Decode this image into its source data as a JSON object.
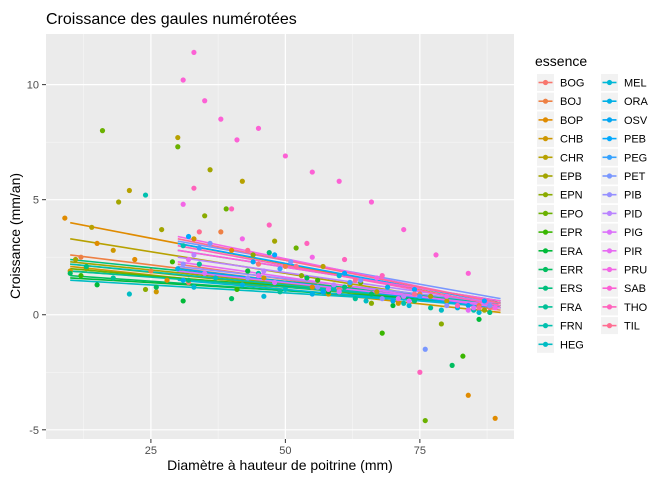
{
  "chart_data": {
    "type": "scatter",
    "title": "Croissance des gaules numérotées",
    "xlabel": "Diamètre à hauteur de poitrine (mm)",
    "ylabel": "Croissance (mm/an)",
    "xlim": [
      5.5,
      92.5
    ],
    "ylim": [
      -5.4,
      12.2
    ],
    "x_ticks": [
      25,
      50,
      75
    ],
    "x_tick_labels": [
      "25",
      "50",
      "75"
    ],
    "y_ticks": [
      -5,
      0,
      5,
      10
    ],
    "y_tick_labels": [
      "-5",
      "0",
      "5",
      "10"
    ],
    "grid": true,
    "legend": {
      "title": "essence",
      "position": "right",
      "columns": 2
    },
    "series": [
      {
        "name": "BOG",
        "color": "#F8766D",
        "x": [
          32,
          45,
          60,
          72,
          88
        ],
        "y": [
          1.4,
          2.2,
          1.1,
          0.8,
          0.3
        ],
        "trend": [
          [
            30,
            2.2
          ],
          [
            90,
            0.2
          ]
        ]
      },
      {
        "name": "BOJ",
        "color": "#EE8044",
        "x": [
          12,
          25,
          38,
          50,
          62,
          75,
          86
        ],
        "y": [
          2.5,
          1.9,
          3.6,
          2.1,
          1.4,
          0.9,
          0.4
        ],
        "trend": [
          [
            10,
            2.6
          ],
          [
            90,
            0.3
          ]
        ]
      },
      {
        "name": "BOP",
        "color": "#E08B00",
        "x": [
          9,
          15,
          22,
          28,
          40,
          55,
          70,
          84,
          89
        ],
        "y": [
          4.2,
          3.1,
          2.4,
          1.5,
          2.8,
          1.2,
          0.6,
          -3.5,
          -4.5
        ],
        "trend": [
          [
            10,
            4.0
          ],
          [
            90,
            0.4
          ]
        ]
      },
      {
        "name": "CHB",
        "color": "#CE9700",
        "x": [
          10,
          18,
          26,
          33,
          46,
          58,
          71
        ],
        "y": [
          1.9,
          2.8,
          1.0,
          3.3,
          1.6,
          0.9,
          0.5
        ],
        "trend": [
          [
            10,
            2.1
          ],
          [
            90,
            0.1
          ]
        ]
      },
      {
        "name": "CHR",
        "color": "#B7A100",
        "x": [
          14,
          21,
          30,
          42,
          57,
          67,
          80
        ],
        "y": [
          3.8,
          5.4,
          7.7,
          5.8,
          2.1,
          1.0,
          0.6
        ],
        "trend": [
          [
            10,
            3.3
          ],
          [
            90,
            0.3
          ]
        ]
      },
      {
        "name": "EPB",
        "color": "#A3A500",
        "x": [
          11,
          19,
          27,
          36,
          48,
          62,
          77,
          87
        ],
        "y": [
          2.4,
          4.9,
          3.7,
          6.3,
          3.2,
          1.3,
          0.8,
          0.2
        ],
        "trend": [
          [
            10,
            2.3
          ],
          [
            90,
            0.4
          ]
        ]
      },
      {
        "name": "EPN",
        "color": "#8AAB00",
        "x": [
          13,
          24,
          35,
          44,
          53,
          66,
          79
        ],
        "y": [
          2.0,
          1.1,
          4.3,
          2.6,
          1.7,
          0.5,
          -0.4
        ],
        "trend": [
          [
            10,
            2.2
          ],
          [
            90,
            0.3
          ]
        ]
      },
      {
        "name": "EPO",
        "color": "#6BB100",
        "x": [
          16,
          30,
          39,
          52,
          64,
          76
        ],
        "y": [
          8.0,
          7.3,
          4.6,
          2.9,
          1.4,
          -4.6
        ],
        "trend": [
          [
            10,
            2.0
          ],
          [
            90,
            0.4
          ]
        ]
      },
      {
        "name": "EPR",
        "color": "#39B600",
        "x": [
          12,
          29,
          41,
          56,
          68,
          83
        ],
        "y": [
          1.7,
          2.3,
          1.1,
          1.5,
          -0.8,
          -1.8
        ],
        "trend": [
          [
            10,
            1.9
          ],
          [
            90,
            0.6
          ]
        ]
      },
      {
        "name": "ERA",
        "color": "#00BA38",
        "x": [
          15,
          31,
          43,
          58,
          70,
          86
        ],
        "y": [
          1.3,
          0.6,
          1.9,
          1.0,
          0.4,
          -0.2
        ],
        "trend": [
          [
            10,
            1.6
          ],
          [
            90,
            0.5
          ]
        ]
      },
      {
        "name": "ERR",
        "color": "#00BD5F",
        "x": [
          10,
          26,
          40,
          54,
          66,
          81
        ],
        "y": [
          1.8,
          1.2,
          0.7,
          1.6,
          0.9,
          -2.2
        ],
        "trend": [
          [
            10,
            1.7
          ],
          [
            90,
            0.4
          ]
        ]
      },
      {
        "name": "ERS",
        "color": "#00BF7D",
        "x": [
          13,
          32,
          47,
          61,
          74,
          88
        ],
        "y": [
          2.1,
          1.5,
          2.7,
          1.2,
          0.6,
          0.1
        ],
        "trend": [
          [
            10,
            2.4
          ],
          [
            90,
            0.5
          ]
        ]
      },
      {
        "name": "FRA",
        "color": "#00C097",
        "x": [
          18,
          34,
          49,
          63,
          77
        ],
        "y": [
          1.6,
          2.2,
          1.0,
          0.7,
          0.3
        ],
        "trend": [
          [
            10,
            1.9
          ],
          [
            90,
            0.5
          ]
        ]
      },
      {
        "name": "FRN",
        "color": "#00C0AF",
        "x": [
          24,
          31,
          45,
          59,
          72,
          85
        ],
        "y": [
          5.2,
          3.0,
          1.8,
          1.2,
          0.5,
          0.2
        ],
        "trend": [
          [
            10,
            2.2
          ],
          [
            90,
            0.4
          ]
        ]
      },
      {
        "name": "HEG",
        "color": "#00BCC4",
        "x": [
          21,
          37,
          50,
          65,
          79
        ],
        "y": [
          0.9,
          1.6,
          1.1,
          0.6,
          0.2
        ],
        "trend": [
          [
            10,
            1.5
          ],
          [
            90,
            0.4
          ]
        ]
      },
      {
        "name": "MEL",
        "color": "#00B8D7",
        "x": [
          33,
          46,
          60,
          73,
          86
        ],
        "y": [
          1.2,
          0.8,
          1.7,
          0.4,
          0.1
        ],
        "trend": [
          [
            30,
            1.5
          ],
          [
            90,
            0.3
          ]
        ]
      },
      {
        "name": "ORA",
        "color": "#00B0E6",
        "x": [
          30,
          42,
          55,
          69,
          82
        ],
        "y": [
          2.0,
          1.3,
          0.9,
          1.2,
          0.3
        ],
        "trend": [
          [
            30,
            1.9
          ],
          [
            90,
            0.4
          ]
        ]
      },
      {
        "name": "OSV",
        "color": "#00A6F3",
        "x": [
          31,
          44,
          57,
          70,
          84
        ],
        "y": [
          1.5,
          2.3,
          1.0,
          0.6,
          0.4
        ],
        "trend": [
          [
            30,
            2.0
          ],
          [
            90,
            0.3
          ]
        ]
      },
      {
        "name": "PEB",
        "color": "#00A9FF",
        "x": [
          32,
          48,
          61,
          74,
          87
        ],
        "y": [
          3.4,
          2.6,
          1.8,
          1.1,
          0.6
        ],
        "trend": [
          [
            30,
            3.1
          ],
          [
            90,
            0.5
          ]
        ]
      },
      {
        "name": "PEG",
        "color": "#35A2FF",
        "x": [
          34,
          49,
          62,
          75
        ],
        "y": [
          2.9,
          2.0,
          1.4,
          0.8
        ],
        "trend": [
          [
            30,
            2.8
          ],
          [
            90,
            0.6
          ]
        ]
      },
      {
        "name": "PET",
        "color": "#7997FF",
        "x": [
          36,
          51,
          64,
          76,
          88
        ],
        "y": [
          3.1,
          2.3,
          1.5,
          -1.5,
          0.4
        ],
        "trend": [
          [
            30,
            3.2
          ],
          [
            90,
            0.7
          ]
        ]
      },
      {
        "name": "PIB",
        "color": "#9590FF",
        "x": [
          31,
          43,
          56,
          68,
          80
        ],
        "y": [
          2.2,
          1.6,
          1.2,
          0.7,
          0.4
        ],
        "trend": [
          [
            30,
            2.1
          ],
          [
            90,
            0.5
          ]
        ]
      },
      {
        "name": "PID",
        "color": "#B983FF",
        "x": [
          33,
          46,
          59,
          72
        ],
        "y": [
          2.6,
          1.9,
          1.3,
          0.8
        ],
        "trend": [
          [
            30,
            2.5
          ],
          [
            90,
            0.5
          ]
        ]
      },
      {
        "name": "PIG",
        "color": "#DC71FA",
        "x": [
          35,
          48,
          60,
          73,
          85
        ],
        "y": [
          1.8,
          1.4,
          1.0,
          0.6,
          0.3
        ],
        "trend": [
          [
            30,
            1.9
          ],
          [
            90,
            0.4
          ]
        ]
      },
      {
        "name": "PIR",
        "color": "#E76BF3",
        "x": [
          32,
          45,
          58,
          71,
          84
        ],
        "y": [
          2.4,
          1.7,
          1.1,
          0.7,
          0.2
        ],
        "trend": [
          [
            30,
            2.3
          ],
          [
            90,
            0.3
          ]
        ]
      },
      {
        "name": "PRU",
        "color": "#F365E6",
        "x": [
          31,
          42,
          55,
          67,
          80,
          89
        ],
        "y": [
          4.8,
          3.3,
          2.5,
          1.6,
          0.8,
          0.3
        ],
        "trend": [
          [
            30,
            3.4
          ],
          [
            90,
            0.5
          ]
        ]
      },
      {
        "name": "SAB",
        "color": "#FC61D5",
        "x": [
          31,
          33,
          35,
          38,
          41,
          45,
          50,
          55,
          60,
          66,
          72,
          78,
          84
        ],
        "y": [
          10.2,
          11.4,
          9.3,
          8.5,
          7.6,
          8.1,
          6.9,
          6.2,
          5.8,
          4.9,
          3.7,
          2.6,
          1.8
        ],
        "trend": [
          [
            30,
            2.8
          ],
          [
            90,
            0.6
          ]
        ]
      },
      {
        "name": "THO",
        "color": "#FF62BC",
        "x": [
          33,
          40,
          47,
          54,
          61,
          68,
          75,
          82
        ],
        "y": [
          5.5,
          4.6,
          3.9,
          3.1,
          2.4,
          1.7,
          -2.5,
          0.4
        ],
        "trend": [
          [
            30,
            3.0
          ],
          [
            90,
            0.4
          ]
        ]
      },
      {
        "name": "TIL",
        "color": "#FF6C91",
        "x": [
          34,
          43,
          52,
          63,
          74,
          86
        ],
        "y": [
          3.6,
          2.8,
          2.1,
          1.5,
          0.9,
          0.3
        ],
        "trend": [
          [
            30,
            3.3
          ],
          [
            90,
            0.5
          ]
        ]
      }
    ]
  }
}
